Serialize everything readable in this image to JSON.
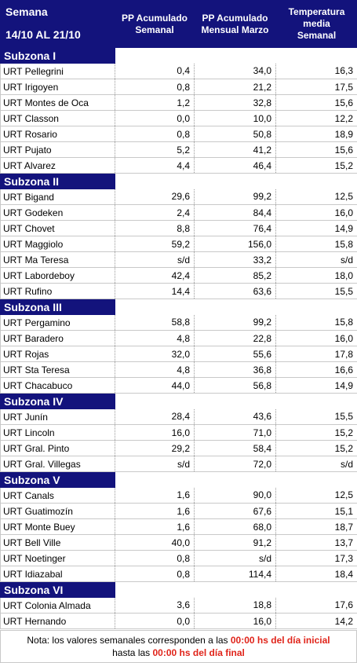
{
  "header": {
    "week_label": "Semana",
    "week_range": "14/10 AL 21/10",
    "col_pp_week": [
      "PP Acumulado",
      "Semanal"
    ],
    "col_pp_month": [
      "PP Acumulado",
      "Mensual Marzo"
    ],
    "col_temp": [
      "Temperatura",
      "media",
      "Semanal"
    ]
  },
  "zones": [
    {
      "name": "Subzona I",
      "rows": [
        {
          "name": "URT Pellegrini",
          "pp_week": "0,4",
          "pp_month": "34,0",
          "temp": "16,3"
        },
        {
          "name": "URT Irigoyen",
          "pp_week": "0,8",
          "pp_month": "21,2",
          "temp": "17,5"
        },
        {
          "name": "URT Montes de Oca",
          "pp_week": "1,2",
          "pp_month": "32,8",
          "temp": "15,6"
        },
        {
          "name": "URT Classon",
          "pp_week": "0,0",
          "pp_month": "10,0",
          "temp": "12,2"
        },
        {
          "name": "URT Rosario",
          "pp_week": "0,8",
          "pp_month": "50,8",
          "temp": "18,9"
        },
        {
          "name": "URT Pujato",
          "pp_week": "5,2",
          "pp_month": "41,2",
          "temp": "15,6"
        },
        {
          "name": "URT Alvarez",
          "pp_week": "4,4",
          "pp_month": "46,4",
          "temp": "15,2"
        }
      ]
    },
    {
      "name": "Subzona II",
      "rows": [
        {
          "name": "URT Bigand",
          "pp_week": "29,6",
          "pp_month": "99,2",
          "temp": "12,5"
        },
        {
          "name": "URT Godeken",
          "pp_week": "2,4",
          "pp_month": "84,4",
          "temp": "16,0"
        },
        {
          "name": "URT Chovet",
          "pp_week": "8,8",
          "pp_month": "76,4",
          "temp": "14,9"
        },
        {
          "name": "URT Maggiolo",
          "pp_week": "59,2",
          "pp_month": "156,0",
          "temp": "15,8"
        },
        {
          "name": "URT Ma Teresa",
          "pp_week": "s/d",
          "pp_month": "33,2",
          "temp": "s/d"
        },
        {
          "name": "URT Labordeboy",
          "pp_week": "42,4",
          "pp_month": "85,2",
          "temp": "18,0"
        },
        {
          "name": "URT Rufino",
          "pp_week": "14,4",
          "pp_month": "63,6",
          "temp": "15,5"
        }
      ]
    },
    {
      "name": "Subzona III",
      "rows": [
        {
          "name": "URT Pergamino",
          "pp_week": "58,8",
          "pp_month": "99,2",
          "temp": "15,8"
        },
        {
          "name": "URT Baradero",
          "pp_week": "4,8",
          "pp_month": "22,8",
          "temp": "16,0"
        },
        {
          "name": "URT Rojas",
          "pp_week": "32,0",
          "pp_month": "55,6",
          "temp": "17,8"
        },
        {
          "name": "URT Sta Teresa",
          "pp_week": "4,8",
          "pp_month": "36,8",
          "temp": "16,6"
        },
        {
          "name": "URT Chacabuco",
          "pp_week": "44,0",
          "pp_month": "56,8",
          "temp": "14,9"
        }
      ]
    },
    {
      "name": "Subzona IV",
      "rows": [
        {
          "name": "URT Junín",
          "pp_week": "28,4",
          "pp_month": "43,6",
          "temp": "15,5"
        },
        {
          "name": "URT Lincoln",
          "pp_week": "16,0",
          "pp_month": "71,0",
          "temp": "15,2"
        },
        {
          "name": "URT Gral. Pinto",
          "pp_week": "29,2",
          "pp_month": "58,4",
          "temp": "15,2"
        },
        {
          "name": "URT Gral. Villegas",
          "pp_week": "s/d",
          "pp_month": "72,0",
          "temp": "s/d"
        }
      ]
    },
    {
      "name": "Subzona V",
      "rows": [
        {
          "name": "URT Canals",
          "pp_week": "1,6",
          "pp_month": "90,0",
          "temp": "12,5"
        },
        {
          "name": "URT Guatimozín",
          "pp_week": "1,6",
          "pp_month": "67,6",
          "temp": "15,1"
        },
        {
          "name": "URT Monte Buey",
          "pp_week": "1,6",
          "pp_month": "68,0",
          "temp": "18,7"
        },
        {
          "name": "URT Bell Ville",
          "pp_week": "40,0",
          "pp_month": "91,2",
          "temp": "13,7"
        },
        {
          "name": "URT Noetinger",
          "pp_week": "0,8",
          "pp_month": "s/d",
          "temp": "17,3"
        },
        {
          "name": "URT Idiazabal",
          "pp_week": "0,8",
          "pp_month": "114,4",
          "temp": "18,4"
        }
      ]
    },
    {
      "name": "Subzona VI",
      "rows": [
        {
          "name": "URT Colonia Almada",
          "pp_week": "3,6",
          "pp_month": "18,8",
          "temp": "17,6"
        },
        {
          "name": "URT Hernando",
          "pp_week": "0,0",
          "pp_month": "16,0",
          "temp": "14,2"
        }
      ]
    }
  ],
  "note": {
    "part1": "Nota: los valores semanales corresponden a las ",
    "highlight1": "00:00 hs del día inicial",
    "part2": "hasta las ",
    "highlight2": "00:00 hs del día final"
  },
  "colors": {
    "header_bg": "#13137c",
    "highlight": "#e0241a"
  }
}
